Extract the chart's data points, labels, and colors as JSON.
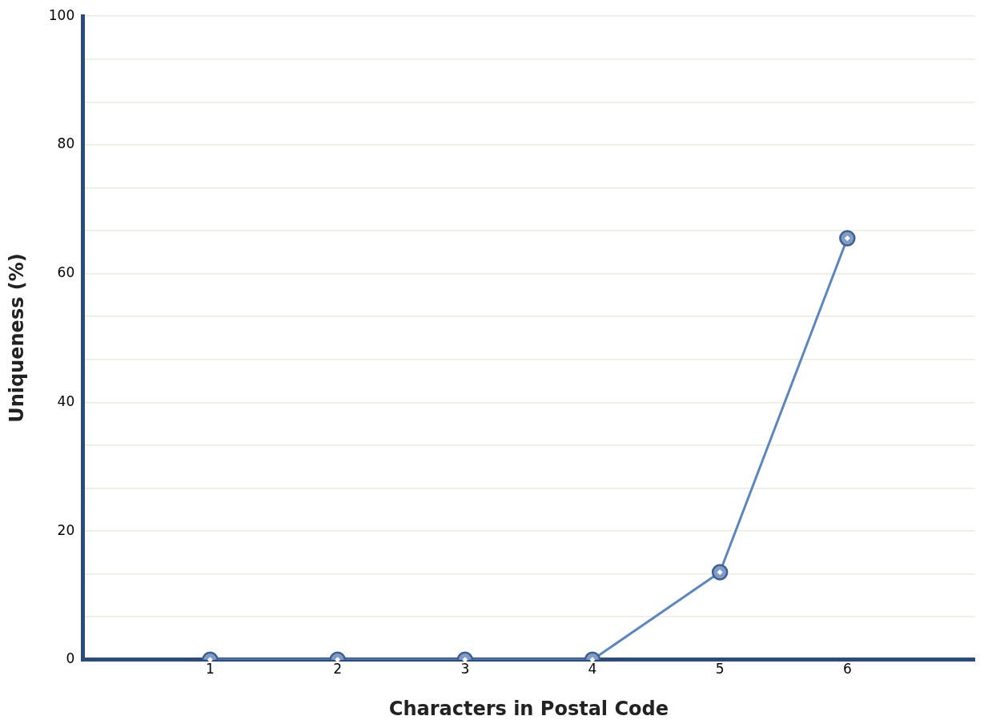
{
  "chart_data": {
    "type": "line",
    "xlabel": "Characters in Postal Code",
    "ylabel": "Uniqueness (%)",
    "x": [
      1,
      2,
      3,
      4,
      5,
      6
    ],
    "series": [
      {
        "color": "#5b86c0",
        "values": [
          0,
          0,
          0,
          0,
          13.6,
          65.5
        ]
      }
    ],
    "xlim": [
      0,
      7
    ],
    "xticks": [
      1,
      2,
      3,
      4,
      5,
      6
    ],
    "ylim": [
      0,
      100
    ],
    "yticks": [
      0,
      {
        "value": 6.667,
        "label": null
      },
      {
        "value": 13.333,
        "label": null
      },
      20,
      {
        "value": 26.667,
        "label": null
      },
      {
        "value": 33.333,
        "label": null
      },
      40,
      {
        "value": 46.667,
        "label": null
      },
      {
        "value": 53.333,
        "label": null
      },
      60,
      {
        "value": 66.667,
        "label": null
      },
      {
        "value": 73.333,
        "label": null
      },
      80,
      {
        "value": 86.667,
        "label": null
      },
      {
        "value": 93.333,
        "label": null
      },
      100
    ],
    "grid": "y",
    "legend": false,
    "marker": "circle",
    "line_style": "solid"
  }
}
